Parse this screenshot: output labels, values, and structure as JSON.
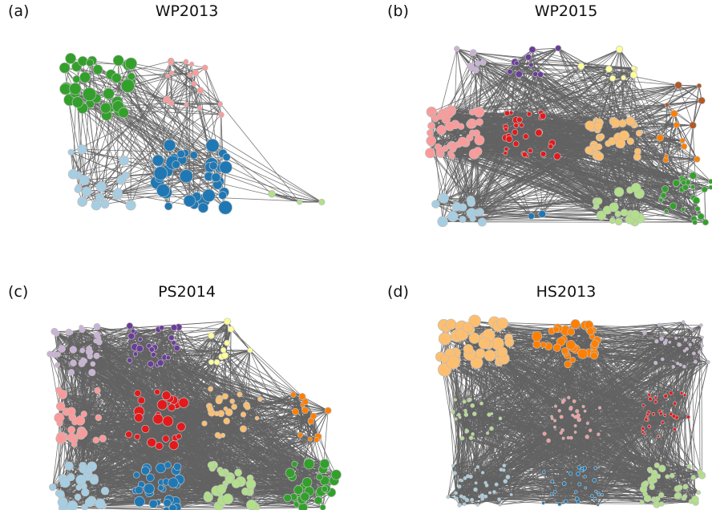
{
  "panels": [
    {
      "id": "a",
      "letter": "(a)",
      "title": "WP2013",
      "communities": [
        {
          "color": "#33a02c",
          "nodes": 35,
          "size": "large"
        },
        {
          "color": "#fb9a99",
          "nodes": 18,
          "size": "small"
        },
        {
          "color": "#a6cee3",
          "nodes": 20,
          "size": "medium"
        },
        {
          "color": "#1f78b4",
          "nodes": 40,
          "size": "large"
        },
        {
          "color": "#b2df8a",
          "nodes": 3,
          "size": "small"
        }
      ]
    },
    {
      "id": "b",
      "letter": "(b)",
      "title": "WP2015",
      "communities": [
        {
          "color": "#cab2d6",
          "nodes": 6,
          "size": "small"
        },
        {
          "color": "#6a3d9a",
          "nodes": 10,
          "size": "small"
        },
        {
          "color": "#ffff99",
          "nodes": 8,
          "size": "small"
        },
        {
          "color": "#b15928",
          "nodes": 5,
          "size": "small"
        },
        {
          "color": "#fb9a99",
          "nodes": 45,
          "size": "medium"
        },
        {
          "color": "#e31a1c",
          "nodes": 30,
          "size": "small"
        },
        {
          "color": "#fdbf6f",
          "nodes": 30,
          "size": "medium"
        },
        {
          "color": "#ff7f00",
          "nodes": 8,
          "size": "small"
        },
        {
          "color": "#a6cee3",
          "nodes": 15,
          "size": "medium"
        },
        {
          "color": "#1f78b4",
          "nodes": 2,
          "size": "small"
        },
        {
          "color": "#b2df8a",
          "nodes": 20,
          "size": "medium"
        },
        {
          "color": "#33a02c",
          "nodes": 25,
          "size": "small"
        }
      ]
    },
    {
      "id": "c",
      "letter": "(c)",
      "title": "PS2014",
      "communities": [
        {
          "color": "#cab2d6",
          "nodes": 30,
          "size": "small"
        },
        {
          "color": "#6a3d9a",
          "nodes": 25,
          "size": "small"
        },
        {
          "color": "#ffff99",
          "nodes": 10,
          "size": "small"
        },
        {
          "color": "#fb9a99",
          "nodes": 25,
          "size": "medium"
        },
        {
          "color": "#e31a1c",
          "nodes": 25,
          "size": "medium"
        },
        {
          "color": "#fdbf6f",
          "nodes": 25,
          "size": "small"
        },
        {
          "color": "#ff7f00",
          "nodes": 15,
          "size": "small"
        },
        {
          "color": "#a6cee3",
          "nodes": 30,
          "size": "medium"
        },
        {
          "color": "#1f78b4",
          "nodes": 30,
          "size": "medium"
        },
        {
          "color": "#b2df8a",
          "nodes": 30,
          "size": "medium"
        },
        {
          "color": "#33a02c",
          "nodes": 30,
          "size": "medium"
        }
      ]
    },
    {
      "id": "d",
      "letter": "(d)",
      "title": "HS2013",
      "communities": [
        {
          "color": "#fdbf6f",
          "nodes": 40,
          "size": "large"
        },
        {
          "color": "#ff7f00",
          "nodes": 35,
          "size": "medium"
        },
        {
          "color": "#cab2d6",
          "nodes": 30,
          "size": "tiny"
        },
        {
          "color": "#b2df8a",
          "nodes": 25,
          "size": "tiny"
        },
        {
          "color": "#fb9a99",
          "nodes": 35,
          "size": "tiny"
        },
        {
          "color": "#e31a1c",
          "nodes": 30,
          "size": "tiny"
        },
        {
          "color": "#a6cee3",
          "nodes": 40,
          "size": "tiny"
        },
        {
          "color": "#1f78b4",
          "nodes": 30,
          "size": "tiny"
        },
        {
          "color": "#b2df8a",
          "nodes": 40,
          "size": "small"
        }
      ]
    }
  ],
  "edge_color": "#636363",
  "node_stroke": "#bdbdbd"
}
